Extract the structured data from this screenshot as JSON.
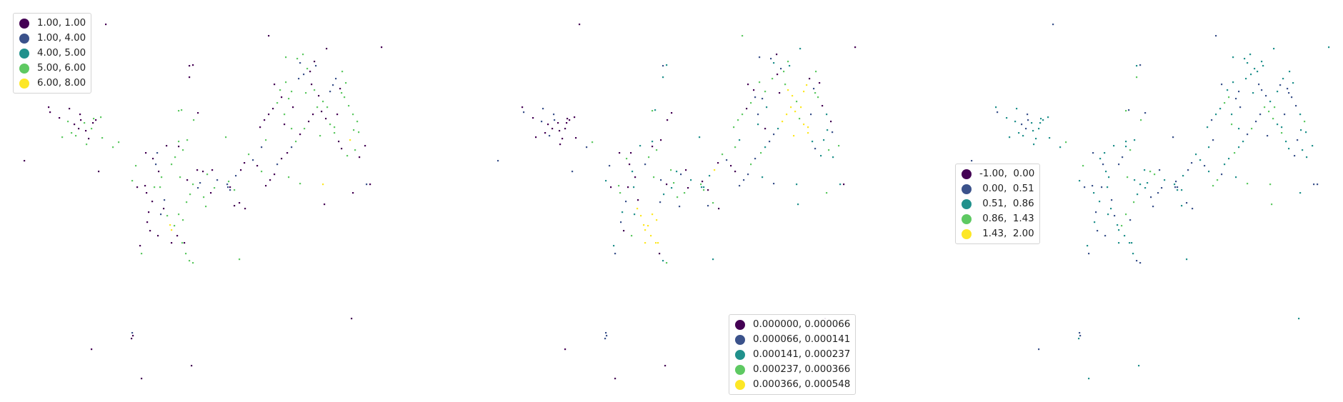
{
  "palette": [
    "#440154",
    "#3b528b",
    "#21918c",
    "#5ec962",
    "#fde725"
  ],
  "maps": [
    {
      "legend": [
        {
          "label": "1.00, 1.00"
        },
        {
          "label": "1.00, 4.00"
        },
        {
          "label": "4.00, 5.00"
        },
        {
          "label": "5.00, 6.00"
        },
        {
          "label": "6.00, 8.00"
        }
      ]
    },
    {
      "legend": [
        {
          "label": "0.000000, 0.000066"
        },
        {
          "label": "0.000066, 0.000141"
        },
        {
          "label": "0.000141, 0.000237"
        },
        {
          "label": "0.000237, 0.000366"
        },
        {
          "label": "0.000366, 0.000548"
        }
      ]
    },
    {
      "legend": [
        {
          "label": "-1.00,  0.00"
        },
        {
          "label": " 0.00,  0.51"
        },
        {
          "label": " 0.51,  0.86"
        },
        {
          "label": " 0.86,  1.43"
        },
        {
          "label": " 1.43,  2.00"
        }
      ]
    }
  ]
}
